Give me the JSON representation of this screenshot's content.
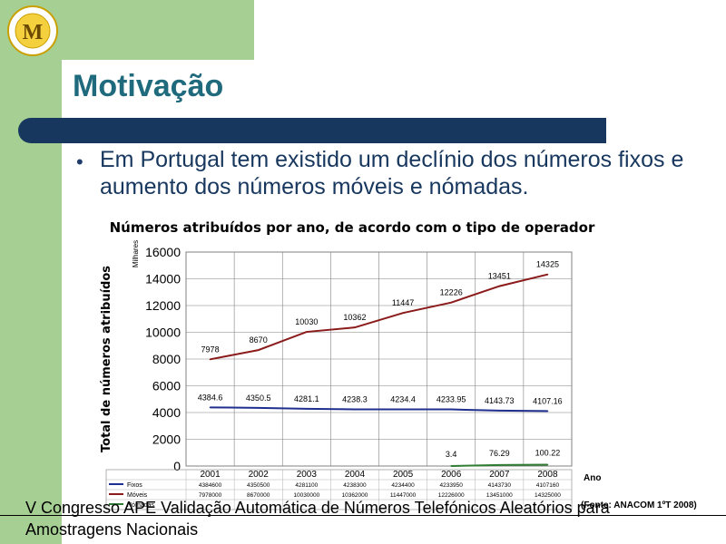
{
  "slide": {
    "title": "Motivação",
    "bullet": "Em Portugal tem existido um declínio dos números fixos e aumento dos números móveis e nómadas.",
    "footer_line1": "V Congresso APE    Validação Automática de Números Telefónicos Aleatórios para",
    "footer_line2": "Amostragens Nacionais",
    "footer_source": "(Fonte: ANACOM 1ºT 2008)"
  },
  "colors": {
    "green": "#a6cf94",
    "title": "#1f6b7d",
    "bar": "#17375e",
    "fixos": "#1f2f8f",
    "moveis": "#8b1a1a",
    "nomadas": "#2e7d32"
  },
  "chart_data": {
    "type": "line",
    "title": "Números atribuídos por ano, de acordo com o tipo de operador",
    "ylabel": "Total de números atribuídos",
    "yunit": "Milhares",
    "xlabel": "Ano",
    "ylim": [
      0,
      16000
    ],
    "yticks": [
      0,
      2000,
      4000,
      6000,
      8000,
      10000,
      12000,
      14000,
      16000
    ],
    "categories": [
      "2001",
      "2002",
      "2003",
      "2004",
      "2005",
      "2006",
      "2007",
      "2008"
    ],
    "grid": true,
    "legend": "table-below",
    "series": [
      {
        "name": "Fixos",
        "values": [
          4384.6,
          4350.5,
          4281.1,
          4238.3,
          4234.4,
          4233.95,
          4143.73,
          4107.16
        ],
        "labels": [
          "4384.6",
          "4350.5",
          "4281.1",
          "4238.3",
          "4234.4",
          "4233.95",
          "4143.73",
          "4107.16"
        ],
        "table": [
          "4384600",
          "4350500",
          "4281100",
          "4238300",
          "4234400",
          "4233950",
          "4143730",
          "4107160"
        ]
      },
      {
        "name": "Móveis",
        "values": [
          7978,
          8670,
          10030,
          10362,
          11447,
          12226,
          13451,
          14325
        ],
        "labels": [
          "7978",
          "8670",
          "10030",
          "10362",
          "11447",
          "12226",
          "13451",
          "14325"
        ],
        "table": [
          "7978000",
          "8670000",
          "10030000",
          "10362000",
          "11447000",
          "12226000",
          "13451000",
          "14325000"
        ]
      },
      {
        "name": "Nómadas",
        "values": [
          null,
          null,
          null,
          null,
          null,
          3.4,
          76.29,
          100.22
        ],
        "labels": [
          "",
          "",
          "",
          "",
          "",
          "3.4",
          "76.29",
          "100.22"
        ],
        "table": [
          "",
          "",
          "",
          "",
          "",
          "",
          "",
          ""
        ]
      }
    ]
  }
}
